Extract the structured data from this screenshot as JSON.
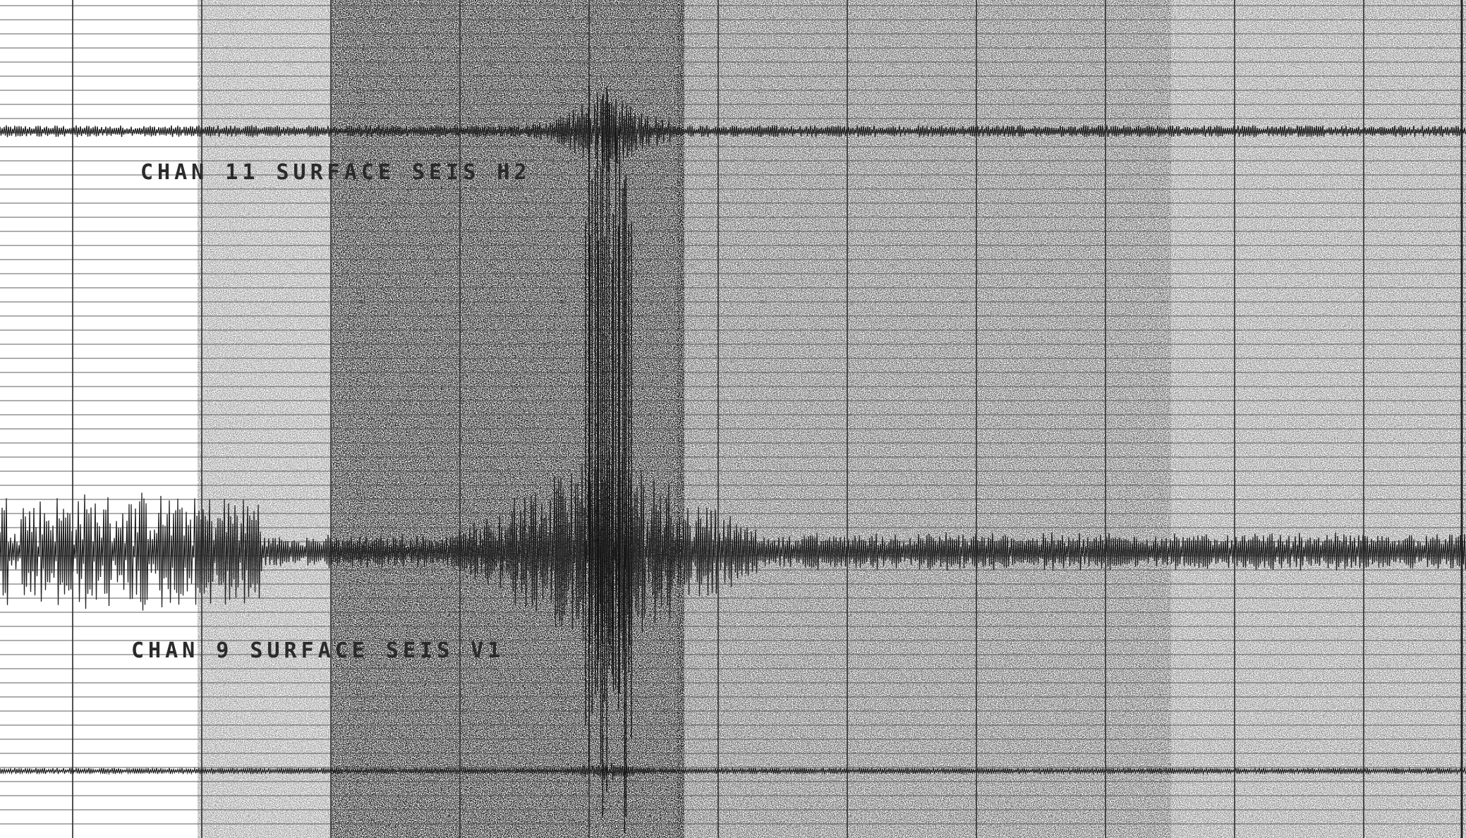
{
  "labels": [
    "CHAN 11 SURFACE SEIS H2",
    "CHAN 9 SURFACE SEIS V1"
  ]
}
